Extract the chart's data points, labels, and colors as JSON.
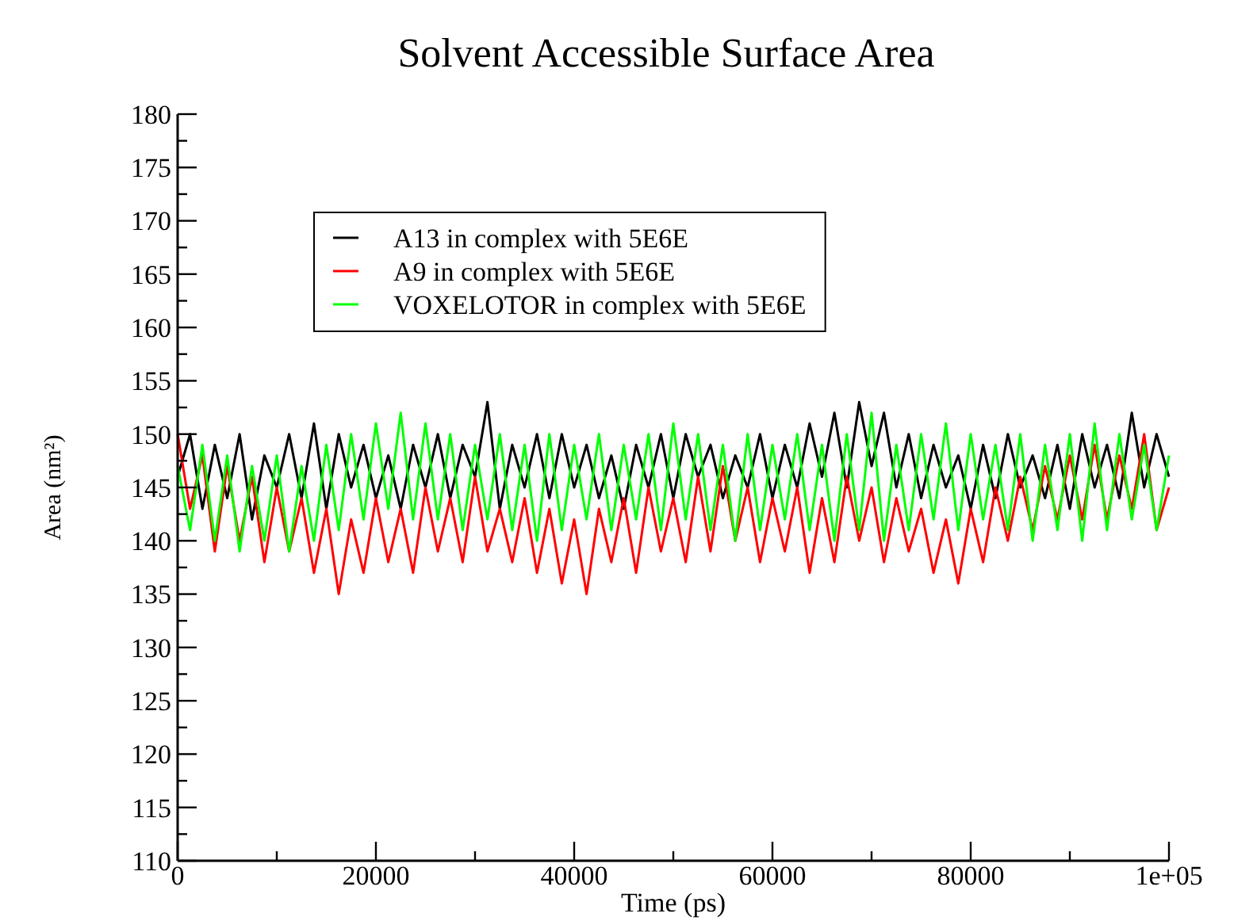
{
  "chart_data": {
    "type": "line",
    "title": "Solvent Accessible Surface Area",
    "xlabel": "Time (ps)",
    "ylabel": "Area (nm²)",
    "x": [
      0,
      1250,
      2500,
      3750,
      5000,
      6250,
      7500,
      8750,
      10000,
      11250,
      12500,
      13750,
      15000,
      16250,
      17500,
      18750,
      20000,
      21250,
      22500,
      23750,
      25000,
      26250,
      27500,
      28750,
      30000,
      31250,
      32500,
      33750,
      35000,
      36250,
      37500,
      38750,
      40000,
      41250,
      42500,
      43750,
      45000,
      46250,
      47500,
      48750,
      50000,
      51250,
      52500,
      53750,
      55000,
      56250,
      57500,
      58750,
      60000,
      61250,
      62500,
      63750,
      65000,
      66250,
      67500,
      68750,
      70000,
      71250,
      72500,
      73750,
      75000,
      76250,
      77500,
      78750,
      80000,
      81250,
      82500,
      83750,
      85000,
      86250,
      87500,
      88750,
      90000,
      91250,
      92500,
      93750,
      95000,
      96250,
      97500,
      98750,
      100000
    ],
    "series": [
      {
        "name": "A13 in complex with 5E6E",
        "color": "#000000",
        "values": [
          146,
          150,
          143,
          149,
          144,
          150,
          142,
          148,
          145,
          150,
          144,
          151,
          143,
          150,
          145,
          149,
          144,
          148,
          143,
          149,
          145,
          150,
          144,
          149,
          146,
          153,
          143,
          149,
          145,
          150,
          144,
          150,
          145,
          149,
          144,
          148,
          143,
          149,
          145,
          150,
          144,
          150,
          146,
          149,
          144,
          148,
          145,
          150,
          144,
          149,
          145,
          151,
          146,
          152,
          145,
          153,
          147,
          152,
          145,
          150,
          144,
          149,
          145,
          148,
          143,
          149,
          144,
          150,
          145,
          148,
          144,
          149,
          143,
          150,
          145,
          149,
          144,
          152,
          145,
          150,
          146
        ]
      },
      {
        "name": "A9 in complex with 5E6E",
        "color": "#ff0000",
        "values": [
          150,
          143,
          148,
          139,
          147,
          140,
          146,
          138,
          145,
          139,
          144,
          137,
          143,
          135,
          142,
          137,
          144,
          138,
          143,
          137,
          145,
          139,
          144,
          138,
          146,
          139,
          143,
          138,
          144,
          137,
          143,
          136,
          142,
          135,
          143,
          138,
          144,
          137,
          145,
          139,
          144,
          138,
          146,
          139,
          147,
          140,
          145,
          138,
          144,
          139,
          145,
          137,
          144,
          138,
          146,
          140,
          145,
          138,
          144,
          139,
          143,
          137,
          142,
          136,
          143,
          138,
          145,
          140,
          146,
          141,
          147,
          142,
          148,
          142,
          149,
          142,
          148,
          143,
          150,
          141,
          145
        ]
      },
      {
        "name": "VOXELOTOR in complex with 5E6E",
        "color": "#00ff00",
        "values": [
          147,
          141,
          149,
          140,
          148,
          139,
          147,
          140,
          148,
          139,
          147,
          140,
          149,
          141,
          150,
          142,
          151,
          143,
          152,
          142,
          151,
          142,
          150,
          141,
          149,
          142,
          150,
          141,
          149,
          140,
          150,
          141,
          149,
          142,
          150,
          141,
          149,
          142,
          150,
          141,
          151,
          142,
          150,
          141,
          149,
          140,
          150,
          141,
          149,
          142,
          150,
          141,
          149,
          140,
          150,
          141,
          152,
          140,
          149,
          141,
          150,
          142,
          151,
          141,
          150,
          142,
          149,
          141,
          150,
          140,
          149,
          141,
          150,
          140,
          151,
          141,
          150,
          142,
          149,
          141,
          148
        ]
      }
    ],
    "xlim": [
      0,
      100000
    ],
    "ylim": [
      110,
      180
    ],
    "xticks": [
      0,
      {
        "value": 10000,
        "label": null
      },
      20000,
      {
        "value": 30000,
        "label": null
      },
      40000,
      {
        "value": 50000,
        "label": null
      },
      60000,
      {
        "value": 70000,
        "label": null
      },
      80000,
      {
        "value": 90000,
        "label": null
      },
      {
        "value": 100000,
        "label": "1e+05"
      }
    ],
    "yticks": [
      110,
      {
        "value": 112.5,
        "label": null
      },
      115,
      {
        "value": 117.5,
        "label": null
      },
      120,
      {
        "value": 122.5,
        "label": null
      },
      125,
      {
        "value": 127.5,
        "label": null
      },
      130,
      {
        "value": 132.5,
        "label": null
      },
      135,
      {
        "value": 137.5,
        "label": null
      },
      140,
      {
        "value": 142.5,
        "label": null
      },
      145,
      {
        "value": 147.5,
        "label": null
      },
      150,
      {
        "value": 152.5,
        "label": null
      },
      155,
      {
        "value": 157.5,
        "label": null
      },
      160,
      {
        "value": 162.5,
        "label": null
      },
      165,
      {
        "value": 167.5,
        "label": null
      },
      170,
      {
        "value": 172.5,
        "label": null
      },
      175,
      {
        "value": 177.5,
        "label": null
      },
      180
    ],
    "legend": "top",
    "grid": false,
    "line_style": "solid",
    "marker": "none"
  }
}
